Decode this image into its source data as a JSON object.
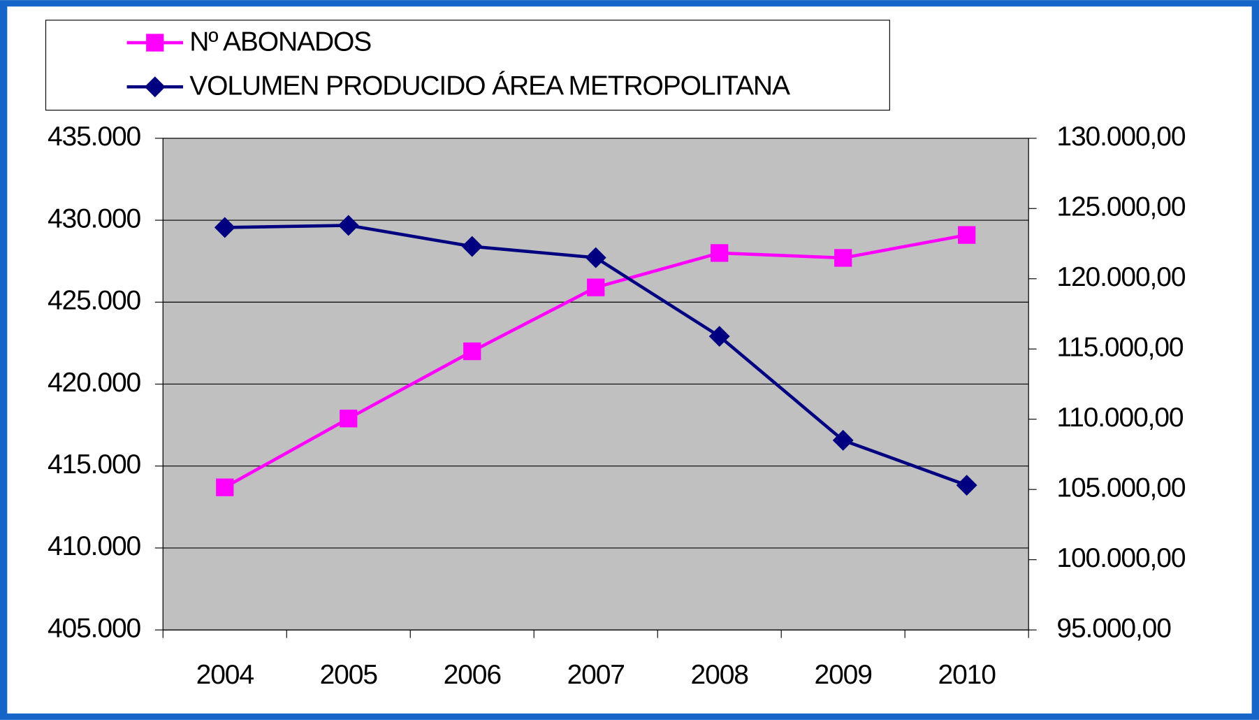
{
  "chart_data": {
    "type": "line",
    "categories": [
      "2004",
      "2005",
      "2006",
      "2007",
      "2008",
      "2009",
      "2010"
    ],
    "series": [
      {
        "name": "Nº ABONADOS",
        "color": "#ff00ff",
        "marker": "square",
        "values": [
          413700,
          417900,
          422000,
          425900,
          428000,
          427700,
          429100
        ]
      },
      {
        "name": "VOLUMEN PRODUCIDO ÁREA METROPOLITANA",
        "color": "#000080",
        "marker": "diamond",
        "axis": "y2",
        "values": [
          123650,
          123800,
          122300,
          121500,
          115900,
          108500,
          105300
        ]
      }
    ],
    "ylim": [
      405000,
      435000
    ],
    "yticks": [
      {
        "value": 405000,
        "label": "405.000"
      },
      {
        "value": 410000,
        "label": "410.000"
      },
      {
        "value": 415000,
        "label": "415.000"
      },
      {
        "value": 420000,
        "label": "420.000"
      },
      {
        "value": 425000,
        "label": "425.000"
      },
      {
        "value": 430000,
        "label": "430.000"
      },
      {
        "value": 435000,
        "label": "435.000"
      }
    ],
    "y2lim": [
      95000,
      130000
    ],
    "y2ticks": [
      {
        "value": 95000,
        "label": "95.000,00"
      },
      {
        "value": 100000,
        "label": "100.000,00"
      },
      {
        "value": 105000,
        "label": "105.000,00"
      },
      {
        "value": 110000,
        "label": "110.000,00"
      },
      {
        "value": 115000,
        "label": "115.000,00"
      },
      {
        "value": 120000,
        "label": "120.000,00"
      },
      {
        "value": 125000,
        "label": "125.000,00"
      },
      {
        "value": 130000,
        "label": "130.000,00"
      }
    ],
    "grid": true,
    "legend": "top"
  }
}
